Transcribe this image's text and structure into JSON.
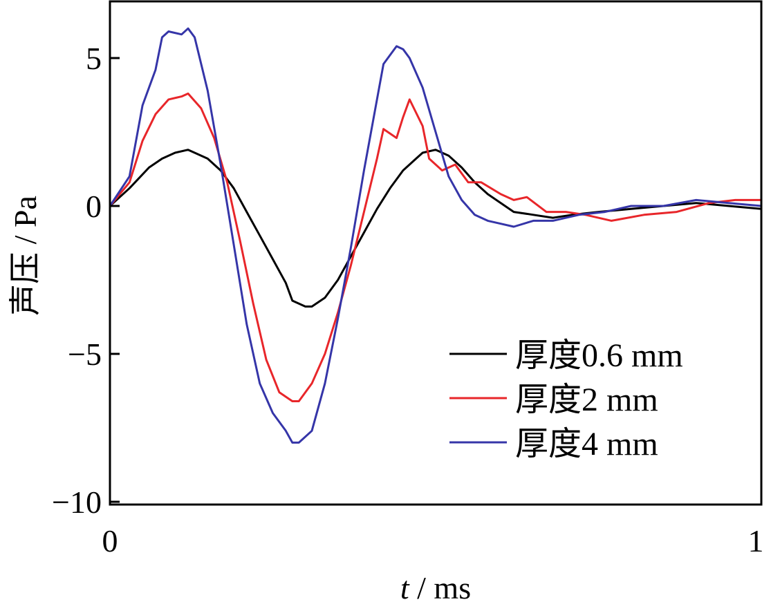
{
  "chart_data": {
    "type": "line",
    "xlabel_var": "t",
    "xlabel_unit": " / ms",
    "ylabel": "声压 / Pa",
    "xlim": [
      0,
      1
    ],
    "ylim": [
      -10,
      7
    ],
    "x_ticks": [
      0,
      1
    ],
    "x_tick_labels": [
      "0",
      "1"
    ],
    "y_ticks": [
      5,
      0,
      -5,
      -10
    ],
    "y_tick_labels": [
      "5",
      "0",
      "−5",
      "−10"
    ],
    "grid": false,
    "legend_position": "bottom-right",
    "series": [
      {
        "name": "厚度0.6 mm",
        "color": "#000000",
        "x": [
          0,
          0.03,
          0.06,
          0.08,
          0.1,
          0.12,
          0.13,
          0.15,
          0.17,
          0.19,
          0.21,
          0.23,
          0.25,
          0.27,
          0.28,
          0.3,
          0.31,
          0.33,
          0.35,
          0.37,
          0.39,
          0.41,
          0.43,
          0.45,
          0.47,
          0.48,
          0.5,
          0.52,
          0.54,
          0.56,
          0.58,
          0.6,
          0.62,
          0.65,
          0.68,
          0.71,
          0.75,
          0.8,
          0.85,
          0.9,
          0.95,
          1.0
        ],
        "values": [
          0.0,
          0.6,
          1.3,
          1.6,
          1.8,
          1.9,
          1.8,
          1.6,
          1.2,
          0.6,
          -0.2,
          -1.0,
          -1.8,
          -2.6,
          -3.2,
          -3.4,
          -3.4,
          -3.1,
          -2.5,
          -1.7,
          -0.9,
          -0.1,
          0.6,
          1.2,
          1.6,
          1.8,
          1.9,
          1.7,
          1.3,
          0.8,
          0.4,
          0.1,
          -0.2,
          -0.3,
          -0.4,
          -0.3,
          -0.2,
          -0.1,
          0.0,
          0.1,
          0.0,
          -0.1
        ]
      },
      {
        "name": "厚度2 mm",
        "color": "#e8262a",
        "x": [
          0,
          0.03,
          0.05,
          0.07,
          0.09,
          0.11,
          0.12,
          0.14,
          0.16,
          0.18,
          0.2,
          0.22,
          0.24,
          0.26,
          0.28,
          0.29,
          0.31,
          0.33,
          0.35,
          0.37,
          0.39,
          0.41,
          0.42,
          0.44,
          0.45,
          0.46,
          0.48,
          0.49,
          0.51,
          0.53,
          0.55,
          0.57,
          0.6,
          0.62,
          0.64,
          0.67,
          0.7,
          0.73,
          0.77,
          0.82,
          0.87,
          0.92,
          0.96,
          1.0
        ],
        "values": [
          0.0,
          0.8,
          2.2,
          3.1,
          3.6,
          3.7,
          3.8,
          3.3,
          2.3,
          0.8,
          -1.2,
          -3.3,
          -5.2,
          -6.3,
          -6.6,
          -6.6,
          -6.0,
          -5.0,
          -3.6,
          -2.0,
          -0.2,
          1.6,
          2.6,
          2.3,
          3.0,
          3.6,
          2.7,
          1.6,
          1.2,
          1.4,
          0.8,
          0.8,
          0.4,
          0.2,
          0.3,
          -0.2,
          -0.2,
          -0.3,
          -0.5,
          -0.3,
          -0.2,
          0.1,
          0.2,
          0.2
        ]
      },
      {
        "name": "厚度4 mm",
        "color": "#3535a8",
        "x": [
          0,
          0.03,
          0.05,
          0.07,
          0.08,
          0.09,
          0.11,
          0.12,
          0.13,
          0.15,
          0.17,
          0.19,
          0.21,
          0.23,
          0.25,
          0.27,
          0.28,
          0.29,
          0.31,
          0.33,
          0.35,
          0.37,
          0.39,
          0.41,
          0.42,
          0.44,
          0.45,
          0.46,
          0.48,
          0.5,
          0.52,
          0.54,
          0.56,
          0.58,
          0.6,
          0.62,
          0.65,
          0.68,
          0.72,
          0.76,
          0.8,
          0.85,
          0.9,
          0.95,
          1.0
        ],
        "values": [
          0.0,
          1.0,
          3.4,
          4.6,
          5.7,
          5.9,
          5.8,
          6.0,
          5.7,
          3.9,
          1.4,
          -1.3,
          -4.0,
          -6.0,
          -7.0,
          -7.6,
          -8.0,
          -8.0,
          -7.6,
          -6.0,
          -3.8,
          -1.4,
          1.2,
          3.6,
          4.8,
          5.4,
          5.3,
          5.0,
          4.0,
          2.5,
          1.0,
          0.2,
          -0.3,
          -0.5,
          -0.6,
          -0.7,
          -0.5,
          -0.5,
          -0.3,
          -0.2,
          0.0,
          0.0,
          0.2,
          0.1,
          0.0
        ]
      }
    ]
  }
}
